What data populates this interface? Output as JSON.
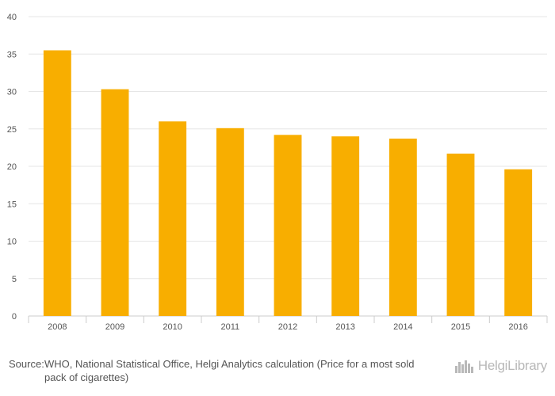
{
  "chart_data": {
    "type": "bar",
    "categories": [
      "2008",
      "2009",
      "2010",
      "2011",
      "2012",
      "2013",
      "2014",
      "2015",
      "2016"
    ],
    "values": [
      35.5,
      30.3,
      26.0,
      25.1,
      24.2,
      24.0,
      23.7,
      21.7,
      19.6
    ],
    "title": "",
    "xlabel": "",
    "ylabel": "",
    "ylim": [
      0,
      40
    ],
    "yticks": [
      "0",
      "5",
      "10",
      "15",
      "20",
      "25",
      "30",
      "35",
      "40"
    ],
    "grid": true,
    "bar_color": "#f8ae00"
  },
  "footer": {
    "source_prefix": "Source:",
    "source_text": "WHO, National Statistical Office, Helgi Analytics calculation (Price for a most sold pack of cigarettes)",
    "brand": "HelgiLibrary"
  },
  "colors": {
    "grid": "#e6e6e6",
    "axis": "#cccccc",
    "text": "#555555",
    "brand": "#b8b8b8"
  },
  "icons": {
    "brand_logo": "city-skyline-icon"
  }
}
